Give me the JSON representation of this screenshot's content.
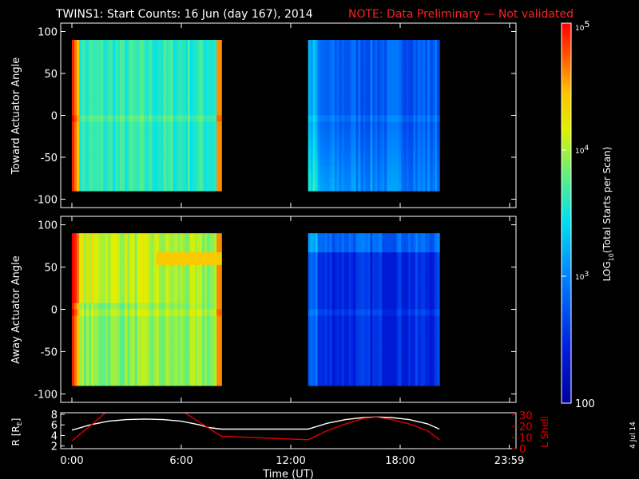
{
  "title": "TWINS1: Start Counts: 16 Jun (day 167), 2014",
  "note": "NOTE: Data Preliminary — Not validated",
  "colors": {
    "background": "#000000",
    "axes": "#ffffff",
    "note": "#ff2020",
    "lshell": "#e00000",
    "r_line": "#ffffff"
  },
  "chart_data": [
    {
      "type": "heatmap",
      "ylabel": "Toward Actuator Angle",
      "ylim": [
        -110,
        110
      ],
      "yticks": [
        "100",
        "50",
        "0",
        "-50",
        "-100"
      ],
      "xlim": [
        0,
        24
      ],
      "data_blocks": [
        {
          "start_hour": 0.0,
          "end_hour": 8.2,
          "angle_range": [
            -90,
            90
          ],
          "mean_log10_counts": 3.6
        },
        {
          "start_hour": 12.95,
          "end_hour": 20.15,
          "angle_range": [
            -90,
            90
          ],
          "mean_log10_counts": 2.8
        }
      ]
    },
    {
      "type": "heatmap",
      "ylabel": "Away Actuator Angle",
      "ylim": [
        -110,
        110
      ],
      "yticks": [
        "100",
        "50",
        "0",
        "-50",
        "-100"
      ],
      "xlim": [
        0,
        24
      ],
      "data_blocks": [
        {
          "start_hour": 0.0,
          "end_hour": 8.2,
          "angle_range": [
            -90,
            90
          ],
          "mean_log10_counts": 3.9
        },
        {
          "start_hour": 12.95,
          "end_hour": 20.15,
          "angle_range": [
            -90,
            90
          ],
          "mean_log10_counts": 2.5
        }
      ]
    },
    {
      "type": "line",
      "ylabel_left": "R [R",
      "ylabel_left_sub": "E",
      "ylabel_left_close": "]",
      "ylabel_right": "L Shell",
      "yticks_left": [
        "8",
        "6",
        "4",
        "2"
      ],
      "yticks_right": [
        "30",
        "20",
        "10",
        "0"
      ],
      "ylim_left": [
        1.5,
        8.3
      ],
      "ylim_right": [
        0,
        32
      ],
      "xlabel": "Time (UT)",
      "xticks": [
        "0:00",
        "6:00",
        "12:00",
        "18:00",
        "23:59"
      ],
      "xtick_hours": [
        0,
        6,
        12,
        18,
        23.98
      ],
      "series": [
        {
          "axis": "left",
          "x": [
            0.0,
            1.0,
            2.0,
            3.0,
            4.0,
            5.0,
            6.0,
            7.0,
            7.5,
            8.2,
            12.95,
            14.0,
            15.0,
            16.0,
            16.7,
            17.5,
            18.5,
            19.5,
            20.15
          ],
          "values": [
            5.0,
            6.0,
            6.7,
            7.0,
            7.1,
            7.0,
            6.7,
            6.0,
            5.5,
            5.2,
            5.2,
            6.3,
            7.0,
            7.4,
            7.5,
            7.4,
            7.0,
            6.2,
            5.2
          ]
        },
        {
          "axis": "right",
          "x": [
            0.0,
            1.2,
            1.9,
            2.1,
            5.9,
            6.1,
            8.2,
            12.95,
            14.0,
            15.0,
            16.0,
            16.7,
            17.5,
            18.5,
            19.5,
            20.15
          ],
          "values": [
            7,
            23,
            33,
            33,
            33,
            33,
            11,
            8,
            16,
            22,
            27,
            28,
            26,
            22,
            16,
            8
          ]
        }
      ]
    }
  ],
  "colorbar": {
    "label_prefix": "LOG",
    "label_sub": "10",
    "label_suffix": "(Total Starts per Scan)",
    "top_base": "10",
    "top_exp": "5",
    "mid_base": "10",
    "mid_exp": "4",
    "low_base": "10",
    "low_exp": "3",
    "bottom_label": "100",
    "log_range": [
      2,
      5
    ]
  },
  "date_stamp": "4 Jul 14"
}
